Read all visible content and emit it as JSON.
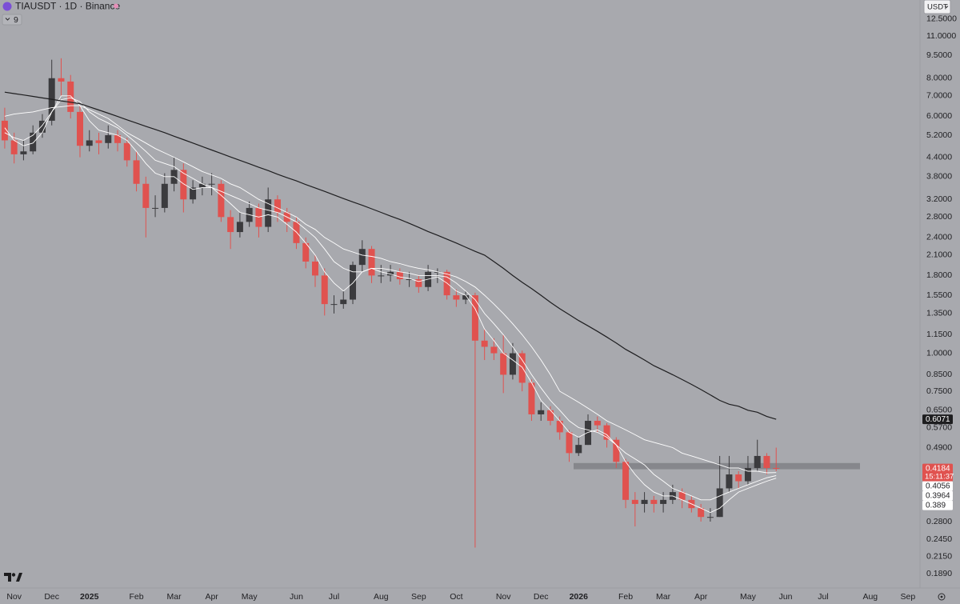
{
  "chart_data": {
    "type": "candlestick",
    "title": "TIAUSDT · 1D · Binance",
    "indicator_count": 9,
    "currency_button": "USDT",
    "countdown": "15:11:37",
    "log_scale": true,
    "grid": false,
    "up_color": "#3b3b3e",
    "down_color": "#e0524f",
    "ylim": [
      0.1695,
      14.45
    ],
    "yticks": [
      {
        "value": 12.5,
        "label": "12.5000"
      },
      {
        "value": 11,
        "label": "11.0000"
      },
      {
        "value": 9.5,
        "label": "9.5000"
      },
      {
        "value": 8,
        "label": "8.0000"
      },
      {
        "value": 7,
        "label": "7.0000"
      },
      {
        "value": 6,
        "label": "6.0000"
      },
      {
        "value": 5.2,
        "label": "5.2000"
      },
      {
        "value": 4.4,
        "label": "4.4000"
      },
      {
        "value": 3.8,
        "label": "3.8000"
      },
      {
        "value": 3.2,
        "label": "3.2000"
      },
      {
        "value": 2.8,
        "label": "2.8000"
      },
      {
        "value": 2.4,
        "label": "2.4000"
      },
      {
        "value": 2.1,
        "label": "2.1000"
      },
      {
        "value": 1.8,
        "label": "1.8000"
      },
      {
        "value": 1.55,
        "label": "1.5500"
      },
      {
        "value": 1.35,
        "label": "1.3500"
      },
      {
        "value": 1.15,
        "label": "1.1500"
      },
      {
        "value": 1,
        "label": "1.0000"
      },
      {
        "value": 0.85,
        "label": "0.8500"
      },
      {
        "value": 0.75,
        "label": "0.7500"
      },
      {
        "value": 0.65,
        "label": "0.6500"
      },
      {
        "value": 0.57,
        "label": "0.5700"
      },
      {
        "value": 0.49,
        "label": "0.4900"
      },
      {
        "value": 0.28,
        "label": "0.2800"
      },
      {
        "value": 0.245,
        "label": "0.2450"
      },
      {
        "value": 0.215,
        "label": "0.2150"
      },
      {
        "value": 0.189,
        "label": "0.1890"
      }
    ],
    "categories": [
      null,
      "Nov",
      null,
      null,
      null,
      "Dec",
      null,
      null,
      null,
      "2025",
      null,
      null,
      null,
      null,
      "Feb",
      null,
      null,
      null,
      "Mar",
      null,
      null,
      null,
      "Apr",
      null,
      null,
      null,
      "May",
      null,
      null,
      null,
      null,
      "Jun",
      null,
      null,
      null,
      "Jul",
      null,
      null,
      null,
      null,
      "Aug",
      null,
      null,
      null,
      "Sep",
      null,
      null,
      null,
      "Oct",
      null,
      null,
      null,
      null,
      "Nov",
      null,
      null,
      null,
      "Dec",
      null,
      null,
      null,
      "2026",
      null,
      null,
      null,
      null,
      "Feb",
      null,
      null,
      null,
      "Mar",
      null,
      null,
      null,
      "Apr",
      null,
      null,
      null,
      null,
      "May",
      null,
      null,
      null,
      "Jun",
      null,
      null,
      null,
      "Jul",
      null,
      null,
      null,
      null,
      "Aug",
      null,
      null,
      null,
      "Sep"
    ],
    "open": [
      5.8,
      5.0,
      4.5,
      4.6,
      5.3,
      5.8,
      8.0,
      7.8,
      6.2,
      4.8,
      5.0,
      4.9,
      5.2,
      4.9,
      4.3,
      3.6,
      3.0,
      3.0,
      3.6,
      4.0,
      3.2,
      3.5,
      3.6,
      3.6,
      2.8,
      2.5,
      2.7,
      3.0,
      2.6,
      3.2,
      2.9,
      2.7,
      2.3,
      2.0,
      1.8,
      1.45,
      1.45,
      1.5,
      1.95,
      2.2,
      1.8,
      1.8,
      1.85,
      1.75,
      1.75,
      1.65,
      1.85,
      1.85,
      1.55,
      1.5,
      1.55,
      1.1,
      1.05,
      1.0,
      0.85,
      1.0,
      0.8,
      0.63,
      0.65,
      0.6,
      0.55,
      0.47,
      0.5,
      0.6,
      0.58,
      0.52,
      0.44,
      0.33,
      0.32,
      0.33,
      0.32,
      0.33,
      0.35,
      0.33,
      0.31,
      0.29,
      0.29,
      0.36,
      0.4,
      0.38,
      0.42,
      0.46,
      0.42,
      null,
      null,
      null,
      null,
      null,
      null,
      null,
      null,
      null,
      null,
      null,
      null,
      null,
      null
    ],
    "high": [
      6.4,
      5.3,
      5.0,
      5.6,
      6.1,
      9.2,
      9.3,
      8.2,
      6.5,
      5.4,
      5.3,
      5.6,
      5.4,
      5.1,
      4.6,
      3.8,
      3.3,
      3.9,
      4.4,
      4.2,
      3.7,
      3.8,
      3.9,
      3.7,
      2.95,
      2.9,
      3.15,
      3.1,
      3.5,
      3.3,
      3.0,
      2.8,
      2.4,
      2.1,
      1.9,
      1.55,
      1.6,
      2.0,
      2.35,
      2.25,
      1.95,
      1.95,
      1.9,
      1.85,
      1.8,
      1.95,
      1.9,
      1.88,
      1.62,
      1.6,
      1.58,
      1.2,
      1.12,
      1.15,
      1.08,
      1.02,
      0.82,
      0.69,
      0.67,
      0.62,
      0.56,
      0.53,
      0.63,
      0.62,
      0.59,
      0.53,
      0.45,
      0.35,
      0.35,
      0.34,
      0.35,
      0.37,
      0.36,
      0.34,
      0.32,
      0.31,
      0.46,
      0.46,
      0.41,
      0.46,
      0.52,
      0.47,
      0.49,
      null,
      null,
      null,
      null,
      null,
      null,
      null,
      null,
      null,
      null,
      null,
      null,
      null,
      null
    ],
    "low": [
      4.7,
      4.2,
      4.3,
      4.5,
      5.1,
      5.6,
      7.0,
      5.9,
      4.4,
      4.6,
      4.5,
      4.7,
      4.6,
      4.1,
      3.4,
      2.4,
      2.8,
      2.9,
      3.4,
      2.9,
      3.1,
      3.3,
      3.3,
      2.7,
      2.2,
      2.4,
      2.6,
      2.4,
      2.5,
      2.7,
      2.5,
      2.2,
      1.9,
      1.65,
      1.33,
      1.35,
      1.4,
      1.45,
      1.85,
      1.7,
      1.7,
      1.72,
      1.68,
      1.65,
      1.58,
      1.6,
      1.7,
      1.5,
      1.42,
      1.45,
      0.23,
      0.95,
      0.95,
      0.74,
      0.82,
      0.75,
      0.6,
      0.6,
      0.58,
      0.52,
      0.44,
      0.46,
      0.5,
      0.55,
      0.49,
      0.42,
      0.31,
      0.27,
      0.3,
      0.3,
      0.3,
      0.32,
      0.31,
      0.3,
      0.28,
      0.28,
      0.29,
      0.35,
      0.36,
      0.37,
      0.41,
      0.4,
      0.41,
      null,
      null,
      null,
      null,
      null,
      null,
      null,
      null,
      null,
      null,
      null,
      null,
      null,
      null
    ],
    "close": [
      5.0,
      4.5,
      4.6,
      5.3,
      5.8,
      8.0,
      7.8,
      6.2,
      4.8,
      5.0,
      4.9,
      5.2,
      4.9,
      4.3,
      3.6,
      3.0,
      3.0,
      3.6,
      4.0,
      3.2,
      3.5,
      3.6,
      3.6,
      2.8,
      2.5,
      2.7,
      3.0,
      2.6,
      3.2,
      2.9,
      2.7,
      2.3,
      2.0,
      1.8,
      1.45,
      1.45,
      1.5,
      1.95,
      2.2,
      1.8,
      1.8,
      1.85,
      1.75,
      1.75,
      1.65,
      1.85,
      1.85,
      1.55,
      1.5,
      1.55,
      1.1,
      1.05,
      1.0,
      0.85,
      1.0,
      0.8,
      0.63,
      0.65,
      0.6,
      0.55,
      0.47,
      0.5,
      0.6,
      0.58,
      0.52,
      0.44,
      0.33,
      0.32,
      0.33,
      0.32,
      0.33,
      0.35,
      0.33,
      0.31,
      0.29,
      0.29,
      0.36,
      0.4,
      0.38,
      0.42,
      0.46,
      0.42,
      0.4184,
      null,
      null,
      null,
      null,
      null,
      null,
      null,
      null,
      null,
      null,
      null,
      null,
      null,
      null
    ],
    "ma_lines": [
      {
        "color": "#ffffff",
        "values": [
          6.0,
          6.1,
          6.15,
          6.2,
          6.3,
          6.4,
          6.45,
          6.5,
          6.5,
          6.3,
          6.1,
          5.9,
          5.6,
          5.3,
          5.1,
          4.9,
          4.7,
          4.55,
          4.4,
          4.25,
          4.1,
          3.95,
          3.85,
          3.75,
          3.6,
          3.5,
          3.35,
          3.2,
          3.1,
          3.0,
          2.9,
          2.8,
          2.65,
          2.55,
          2.4,
          2.3,
          2.2,
          2.15,
          2.1,
          2.08,
          2.05,
          2.0,
          1.97,
          1.93,
          1.9,
          1.88,
          1.85,
          1.82,
          1.78,
          1.72,
          1.65,
          1.55,
          1.45,
          1.35,
          1.25,
          1.15,
          1.05,
          0.95,
          0.85,
          0.75,
          0.72,
          0.69,
          0.66,
          0.63,
          0.6,
          0.58,
          0.56,
          0.54,
          0.52,
          0.51,
          0.5,
          0.49,
          0.47,
          0.46,
          0.45,
          0.44,
          0.43,
          0.42,
          0.42,
          0.41,
          0.41,
          0.405,
          0.4056,
          null,
          null,
          null,
          null,
          null,
          null,
          null,
          null,
          null,
          null,
          null,
          null,
          null,
          null
        ]
      },
      {
        "color": "#ffffff",
        "values": [
          5.3,
          5.1,
          5.0,
          5.2,
          5.6,
          6.2,
          6.8,
          6.9,
          6.7,
          6.2,
          5.9,
          5.7,
          5.5,
          5.2,
          4.9,
          4.6,
          4.3,
          4.2,
          4.1,
          3.9,
          3.75,
          3.6,
          3.5,
          3.4,
          3.3,
          3.2,
          3.1,
          3.0,
          2.95,
          2.9,
          2.8,
          2.7,
          2.55,
          2.4,
          2.2,
          2.0,
          1.9,
          1.85,
          1.85,
          1.9,
          1.9,
          1.88,
          1.85,
          1.83,
          1.8,
          1.8,
          1.8,
          1.78,
          1.7,
          1.6,
          1.5,
          1.35,
          1.25,
          1.15,
          1.05,
          0.95,
          0.85,
          0.77,
          0.7,
          0.65,
          0.6,
          0.57,
          0.56,
          0.55,
          0.53,
          0.5,
          0.47,
          0.45,
          0.43,
          0.4,
          0.38,
          0.36,
          0.35,
          0.34,
          0.33,
          0.33,
          0.34,
          0.35,
          0.36,
          0.37,
          0.38,
          0.39,
          0.3964,
          null,
          null,
          null,
          null,
          null,
          null,
          null,
          null,
          null,
          null,
          null,
          null,
          null,
          null
        ]
      },
      {
        "color": "#ffffff",
        "values": [
          5.5,
          5.0,
          4.8,
          4.9,
          5.3,
          6.2,
          7.0,
          7.0,
          6.5,
          5.8,
          5.4,
          5.3,
          5.2,
          5.0,
          4.6,
          4.2,
          3.9,
          3.8,
          3.8,
          3.6,
          3.45,
          3.5,
          3.5,
          3.3,
          3.1,
          2.9,
          2.85,
          2.8,
          2.85,
          2.8,
          2.65,
          2.5,
          2.3,
          2.1,
          1.85,
          1.7,
          1.6,
          1.7,
          1.85,
          1.9,
          1.85,
          1.82,
          1.78,
          1.76,
          1.72,
          1.75,
          1.78,
          1.7,
          1.6,
          1.55,
          1.4,
          1.2,
          1.1,
          1.0,
          0.95,
          0.9,
          0.8,
          0.7,
          0.65,
          0.6,
          0.55,
          0.53,
          0.55,
          0.56,
          0.54,
          0.5,
          0.44,
          0.4,
          0.37,
          0.35,
          0.34,
          0.34,
          0.33,
          0.32,
          0.31,
          0.3,
          0.31,
          0.33,
          0.35,
          0.36,
          0.37,
          0.38,
          0.389,
          null,
          null,
          null,
          null,
          null,
          null,
          null,
          null,
          null,
          null,
          null,
          null,
          null,
          null
        ]
      },
      {
        "color": "#1e1e20",
        "values": [
          7.2,
          7.12,
          7.05,
          6.97,
          6.89,
          6.82,
          6.74,
          6.67,
          6.6,
          6.44,
          6.29,
          6.14,
          5.99,
          5.84,
          5.7,
          5.56,
          5.43,
          5.3,
          5.16,
          5.03,
          4.9,
          4.77,
          4.65,
          4.53,
          4.41,
          4.3,
          4.19,
          4.08,
          3.98,
          3.87,
          3.77,
          3.68,
          3.58,
          3.49,
          3.4,
          3.31,
          3.22,
          3.14,
          3.06,
          2.98,
          2.9,
          2.82,
          2.75,
          2.67,
          2.59,
          2.51,
          2.44,
          2.37,
          2.3,
          2.23,
          2.16,
          2.1,
          2.0,
          1.9,
          1.8,
          1.71,
          1.63,
          1.55,
          1.47,
          1.4,
          1.34,
          1.28,
          1.23,
          1.18,
          1.13,
          1.08,
          1.03,
          0.99,
          0.95,
          0.91,
          0.88,
          0.85,
          0.82,
          0.79,
          0.76,
          0.73,
          0.7,
          0.68,
          0.67,
          0.65,
          0.64,
          0.62,
          0.6071,
          null,
          null,
          null,
          null,
          null,
          null,
          null,
          null,
          null,
          null,
          null,
          null,
          null,
          null
        ]
      }
    ],
    "zone": {
      "low": 0.416,
      "high": 0.436,
      "color": "#7b7c80"
    }
  }
}
